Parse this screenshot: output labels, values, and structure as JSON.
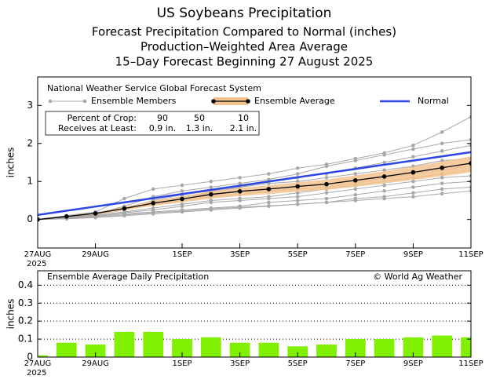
{
  "chart_data": [
    {
      "type": "line",
      "title": "US Soybeans Precipitation",
      "subtitle": [
        "Forecast Precipitation Compared to Normal (inches)",
        "Production–Weighted Area Average",
        "15–Day Forecast Beginning 27 August 2025"
      ],
      "source": "National Weather Service Global Forecast System",
      "y_label": "inches",
      "x": [
        0,
        1,
        2,
        3,
        4,
        5,
        6,
        7,
        8,
        9,
        10,
        11,
        12,
        13,
        14,
        15
      ],
      "xlim": [
        0,
        15
      ],
      "xticks": [
        {
          "value": 0,
          "label": "27AUG"
        },
        {
          "value": 2,
          "label": "29AUG"
        },
        {
          "value": 5,
          "label": "1SEP"
        },
        {
          "value": 7,
          "label": "3SEP"
        },
        {
          "value": 9,
          "label": "5SEP"
        },
        {
          "value": 11,
          "label": "7SEP"
        },
        {
          "value": 13,
          "label": "9SEP"
        },
        {
          "value": 15,
          "label": "11SEP"
        }
      ],
      "x_year_label": "2025",
      "ylim": [
        -0.75,
        3.75
      ],
      "yticks": [
        0,
        1,
        2,
        3
      ],
      "ensemble": {
        "name": "Ensemble Members",
        "color": "#a8a8a8",
        "members": [
          [
            0,
            0.1,
            0.2,
            0.55,
            0.8,
            0.9,
            1.0,
            1.1,
            1.2,
            1.35,
            1.45,
            1.6,
            1.75,
            1.95,
            2.3,
            2.7
          ],
          [
            0,
            0.08,
            0.15,
            0.35,
            0.6,
            0.75,
            0.85,
            0.95,
            1.05,
            1.2,
            1.4,
            1.55,
            1.7,
            1.85,
            2.0,
            2.1
          ],
          [
            0,
            0.05,
            0.12,
            0.25,
            0.45,
            0.6,
            0.7,
            0.85,
            1.0,
            1.1,
            1.2,
            1.35,
            1.5,
            1.65,
            1.8,
            1.95
          ],
          [
            0,
            0.1,
            0.18,
            0.3,
            0.5,
            0.65,
            0.75,
            0.85,
            0.95,
            1.0,
            1.1,
            1.2,
            1.3,
            1.4,
            1.55,
            1.6
          ],
          [
            0,
            0.06,
            0.14,
            0.28,
            0.4,
            0.5,
            0.6,
            0.65,
            0.75,
            0.8,
            0.85,
            0.95,
            1.1,
            1.2,
            1.3,
            1.4
          ],
          [
            0,
            0.04,
            0.1,
            0.2,
            0.3,
            0.4,
            0.5,
            0.55,
            0.6,
            0.7,
            0.8,
            0.9,
            1.0,
            1.1,
            1.2,
            1.3
          ],
          [
            0,
            0.05,
            0.1,
            0.18,
            0.25,
            0.35,
            0.45,
            0.5,
            0.55,
            0.6,
            0.7,
            0.8,
            0.9,
            1.0,
            1.1,
            1.15
          ],
          [
            0,
            0.03,
            0.08,
            0.15,
            0.2,
            0.25,
            0.3,
            0.35,
            0.45,
            0.5,
            0.55,
            0.65,
            0.75,
            0.85,
            0.95,
            1.0
          ],
          [
            0,
            0.02,
            0.06,
            0.12,
            0.18,
            0.22,
            0.28,
            0.32,
            0.36,
            0.4,
            0.45,
            0.55,
            0.6,
            0.7,
            0.8,
            0.85
          ],
          [
            0,
            0.02,
            0.05,
            0.1,
            0.15,
            0.2,
            0.25,
            0.3,
            0.35,
            0.4,
            0.45,
            0.5,
            0.55,
            0.6,
            0.68,
            0.75
          ]
        ]
      },
      "band": {
        "color": "#f2c38e",
        "lower": [
          0,
          0.07,
          0.13,
          0.24,
          0.36,
          0.45,
          0.55,
          0.62,
          0.67,
          0.73,
          0.78,
          0.86,
          0.95,
          1.04,
          1.14,
          1.24
        ],
        "upper": [
          0,
          0.09,
          0.18,
          0.33,
          0.49,
          0.61,
          0.74,
          0.83,
          0.9,
          0.98,
          1.05,
          1.16,
          1.27,
          1.39,
          1.52,
          1.66
        ]
      },
      "series": [
        {
          "name": "Ensemble Average",
          "color": "#000000",
          "values": [
            0,
            0.08,
            0.16,
            0.29,
            0.43,
            0.54,
            0.66,
            0.74,
            0.8,
            0.87,
            0.93,
            1.03,
            1.13,
            1.24,
            1.36,
            1.48
          ]
        },
        {
          "name": "Normal",
          "color": "#2b45e6",
          "values": [
            0.12,
            0.23,
            0.34,
            0.45,
            0.56,
            0.67,
            0.78,
            0.89,
            1.0,
            1.11,
            1.22,
            1.33,
            1.44,
            1.55,
            1.66,
            1.77
          ]
        }
      ],
      "crop_table": {
        "percent_label": "Percent of Crop:",
        "percents": [
          90,
          50,
          10
        ],
        "amount_label": "Receives at Least:",
        "amounts": [
          "0.9 in.",
          "1.3 in.",
          "2.1 in."
        ]
      }
    },
    {
      "type": "bar",
      "title": "Ensemble Average Daily Precipitation",
      "annotation": "© World Ag Weather",
      "y_label": "inches",
      "x": [
        0,
        1,
        2,
        3,
        4,
        5,
        6,
        7,
        8,
        9,
        10,
        11,
        12,
        13,
        14,
        15
      ],
      "values": [
        0.01,
        0.08,
        0.07,
        0.14,
        0.14,
        0.1,
        0.11,
        0.08,
        0.08,
        0.06,
        0.07,
        0.1,
        0.1,
        0.11,
        0.12,
        0.11
      ],
      "color": "#80f000",
      "xlim": [
        0,
        15
      ],
      "xticks": [
        {
          "value": 0,
          "label": "27AUG"
        },
        {
          "value": 2,
          "label": "29AUG"
        },
        {
          "value": 5,
          "label": "1SEP"
        },
        {
          "value": 7,
          "label": "3SEP"
        },
        {
          "value": 9,
          "label": "5SEP"
        },
        {
          "value": 11,
          "label": "7SEP"
        },
        {
          "value": 13,
          "label": "9SEP"
        },
        {
          "value": 15,
          "label": "11SEP"
        }
      ],
      "x_year_label": "2025",
      "ylim": [
        0,
        0.48
      ],
      "yticks": [
        0,
        0.1,
        0.2,
        0.3,
        0.4
      ],
      "grid": true
    }
  ]
}
